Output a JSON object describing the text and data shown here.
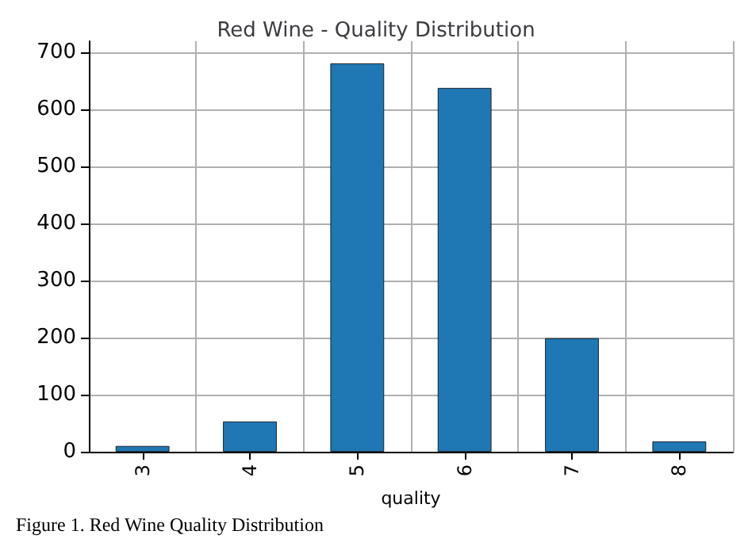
{
  "chart_data": {
    "type": "bar",
    "title": "Red Wine - Quality Distribution",
    "xlabel": "quality",
    "categories": [
      "3",
      "4",
      "5",
      "6",
      "7",
      "8"
    ],
    "values": [
      10,
      53,
      681,
      638,
      199,
      18
    ],
    "color": "#1f77b4",
    "ylim": [
      0,
      720
    ],
    "yticks": [
      0,
      100,
      200,
      300,
      400,
      500,
      600,
      700
    ],
    "grid": true,
    "annotations": [
      "Figure 1. Red Wine Quality Distribution"
    ]
  }
}
